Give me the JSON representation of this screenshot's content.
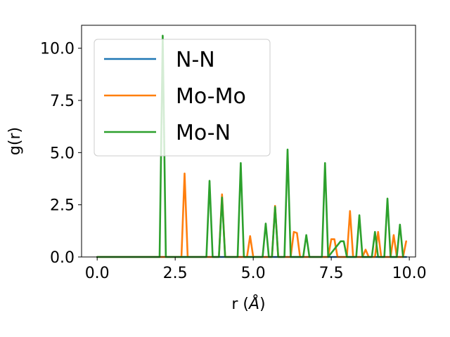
{
  "chart_data": {
    "type": "line",
    "title": "",
    "xlabel": "r (",
    "xlabel_unit": "Å",
    "xlabel_close": ")",
    "ylabel": "g(r)",
    "xlim": [
      -0.5,
      10.2
    ],
    "ylim": [
      0,
      11.1
    ],
    "xticks": [
      0.0,
      2.5,
      5.0,
      7.5,
      10.0
    ],
    "xtick_labels": [
      "0.0",
      "2.5",
      "5.0",
      "7.5",
      "10.0"
    ],
    "yticks": [
      0.0,
      2.5,
      5.0,
      7.5,
      10.0
    ],
    "ytick_labels": [
      "0.0",
      "2.5",
      "5.0",
      "7.5",
      "10.0"
    ],
    "grid": false,
    "legend_position": "upper-left",
    "series": [
      {
        "name": "N-N",
        "color": "#1f77b4",
        "x": [
          0.0,
          9.9
        ],
        "y": [
          0.0,
          0.0
        ]
      },
      {
        "name": "Mo-Mo",
        "color": "#ff7f0e",
        "x": [
          0.0,
          2.7,
          2.8,
          2.9,
          3.9,
          4.0,
          4.1,
          4.8,
          4.9,
          5.0,
          5.6,
          5.7,
          5.8,
          6.2,
          6.3,
          6.4,
          6.5,
          7.4,
          7.5,
          7.6,
          7.7,
          7.8,
          7.9,
          8.0,
          8.1,
          8.2,
          8.5,
          8.6,
          8.7,
          8.9,
          9.0,
          9.1,
          9.2,
          9.3,
          9.4,
          9.5,
          9.6,
          9.7,
          9.8,
          9.9
        ],
        "y": [
          0.0,
          0.0,
          4.0,
          0.0,
          0.0,
          3.0,
          0.0,
          0.0,
          1.0,
          0.0,
          0.0,
          2.45,
          0.0,
          0.0,
          1.2,
          1.15,
          0.0,
          0.0,
          0.85,
          0.85,
          0.0,
          0.0,
          0.0,
          0.0,
          2.2,
          0.0,
          0.0,
          0.35,
          0.0,
          0.0,
          1.2,
          0.0,
          0.0,
          0.0,
          0.0,
          1.05,
          0.0,
          0.0,
          0.0,
          0.75
        ]
      },
      {
        "name": "Mo-N",
        "color": "#2ca02c",
        "x": [
          0.0,
          2.0,
          2.1,
          2.2,
          3.5,
          3.6,
          3.7,
          3.9,
          4.0,
          4.1,
          4.5,
          4.6,
          4.7,
          5.3,
          5.4,
          5.5,
          5.6,
          5.7,
          5.8,
          6.0,
          6.1,
          6.2,
          6.6,
          6.7,
          6.8,
          7.2,
          7.3,
          7.4,
          7.8,
          7.9,
          8.0,
          8.3,
          8.4,
          8.5,
          8.8,
          8.9,
          9.0,
          9.2,
          9.3,
          9.4,
          9.6,
          9.7,
          9.8
        ],
        "y": [
          0.0,
          0.0,
          10.6,
          0.0,
          0.0,
          3.65,
          0.0,
          0.0,
          2.85,
          0.0,
          0.0,
          4.5,
          0.0,
          0.0,
          1.6,
          0.0,
          0.0,
          2.4,
          0.0,
          0.0,
          5.15,
          0.0,
          0.0,
          1.05,
          0.0,
          0.0,
          4.5,
          0.0,
          0.75,
          0.75,
          0.0,
          0.0,
          2.0,
          0.0,
          0.0,
          1.2,
          0.0,
          0.0,
          2.8,
          0.0,
          0.0,
          1.55,
          0.0
        ]
      }
    ]
  }
}
